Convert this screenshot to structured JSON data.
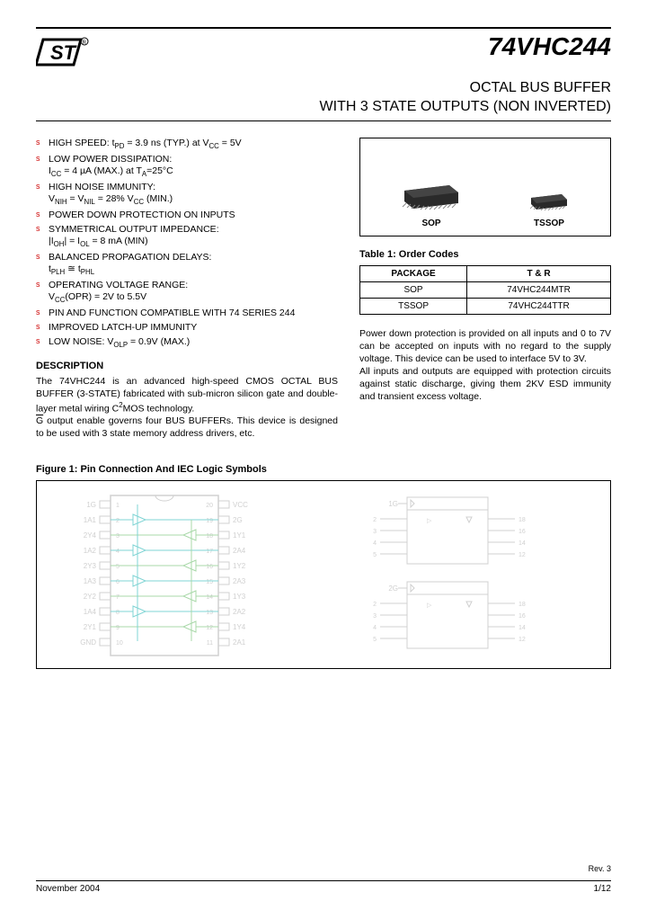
{
  "header": {
    "part_number": "74VHC244",
    "title_line1": "OCTAL BUS BUFFER",
    "title_line2": "WITH 3 STATE OUTPUTS (NON INVERTED)"
  },
  "features": [
    "HIGH SPEED: t<sub>PD</sub> = 3.9 ns (TYP.) at V<sub>CC</sub> = 5V",
    "LOW POWER DISSIPATION:<br>I<sub>CC</sub> = 4 µA (MAX.) at T<sub>A</sub>=25°C",
    "HIGH NOISE IMMUNITY:<br>V<sub>NIH</sub> = V<sub>NIL</sub> = 28% V<sub>CC</sub> (MIN.)",
    "POWER DOWN PROTECTION ON INPUTS",
    "SYMMETRICAL OUTPUT IMPEDANCE:<br>|I<sub>OH</sub>| = I<sub>OL</sub> = 8 mA (MIN)",
    "BALANCED PROPAGATION DELAYS:<br>t<sub>PLH</sub> ≅ t<sub>PHL</sub>",
    "OPERATING VOLTAGE RANGE:<br>V<sub>CC</sub>(OPR) = 2V to 5.5V",
    "PIN AND FUNCTION COMPATIBLE WITH 74 SERIES 244",
    "IMPROVED LATCH-UP IMMUNITY",
    "LOW NOISE: V<sub>OLP</sub> = 0.9V (MAX.)"
  ],
  "description": {
    "heading": "DESCRIPTION",
    "text": "The 74VHC244 is an advanced high-speed CMOS OCTAL BUS BUFFER (3-STATE) fabricated with sub-micron silicon gate and double-layer metal wiring C<sup>2</sup>MOS technology.<br><span class=\"overline\">G</span> output enable governs four BUS BUFFERs. This device is designed to be used with 3 state memory address drivers, etc."
  },
  "packages": {
    "sop": "SOP",
    "tssop": "TSSOP"
  },
  "table1": {
    "caption": "Table 1: Order Codes",
    "headers": [
      "PACKAGE",
      "T & R"
    ],
    "rows": [
      [
        "SOP",
        "74VHC244MTR"
      ],
      [
        "TSSOP",
        "74VHC244TTR"
      ]
    ]
  },
  "right_text": "Power down protection is provided on all inputs and 0 to 7V can be accepted on inputs with no regard to the supply voltage. This device can be used to interface 5V to 3V.<br>All inputs and outputs are equipped with protection circuits against static discharge, giving them 2KV ESD immunity and transient excess voltage.",
  "figure1": {
    "caption": "Figure 1: Pin Connection And IEC Logic Symbols",
    "left_pins_l": [
      "1G",
      "1A1",
      "2Y4",
      "1A2",
      "2Y3",
      "1A3",
      "2Y2",
      "1A4",
      "2Y1",
      "GND"
    ],
    "left_pins_r": [
      "VCC",
      "2G",
      "1Y1",
      "2A4",
      "1Y2",
      "2A3",
      "1Y3",
      "2A2",
      "1Y4",
      "2A1"
    ],
    "rev": "Rev. 3",
    "colors": {
      "faint": "#d0d0d0",
      "cyan": "#7fd4d4",
      "green": "#a8d8a8"
    }
  },
  "footer": {
    "date": "November 2004",
    "page": "1/12"
  }
}
